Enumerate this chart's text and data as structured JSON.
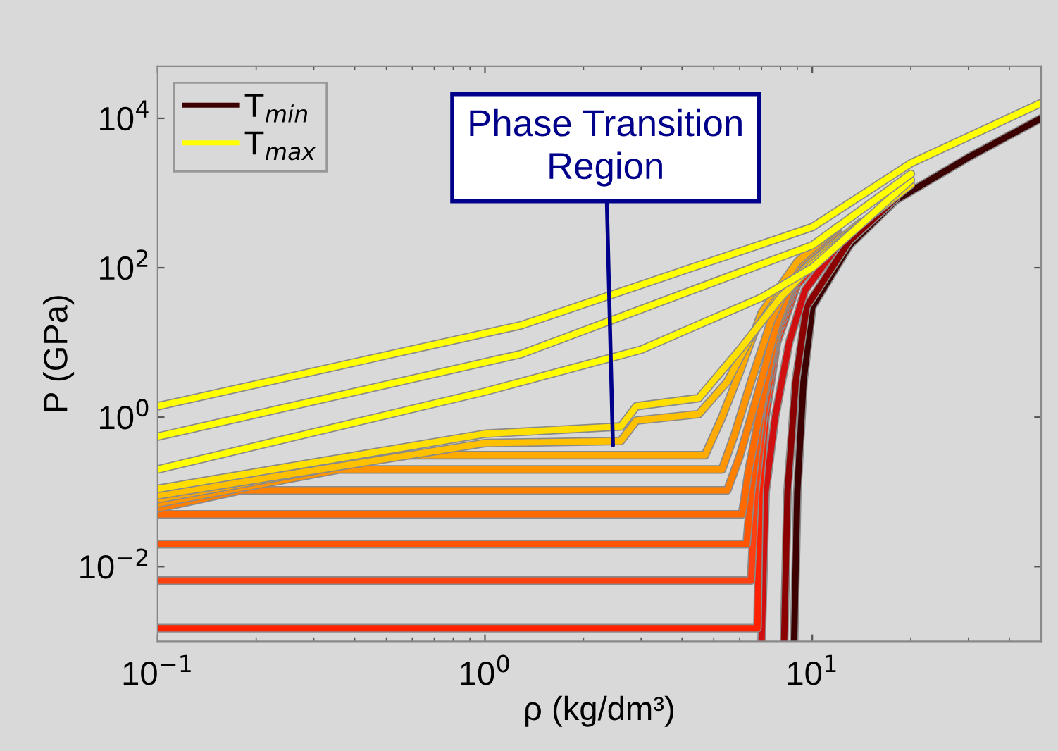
{
  "chart_data": {
    "type": "line",
    "xlabel": "ρ (kg/dm³)",
    "ylabel": "P (GPa)",
    "log": "xy",
    "legend": "top left",
    "grid": false,
    "line_style": "solid",
    "marker": "none",
    "xlim": [
      0.1,
      50
    ],
    "ylim": [
      0.001,
      50000
    ],
    "xticks": [
      {
        "value": 0.1,
        "label": "10$^{−1}$"
      },
      {
        "value": 1,
        "label": "10$^{0}$"
      },
      {
        "value": 10,
        "label": "10$^{1}$"
      }
    ],
    "yticks": [
      {
        "value": 0.01,
        "label": "10$^{−2}$"
      },
      {
        "value": 1,
        "label": "10$^{0}$"
      },
      {
        "value": 100,
        "label": "10$^{2}$"
      },
      {
        "value": 10000,
        "label": "10$^{4}$"
      }
    ],
    "annotations": [
      {
        "text": "Phase Transition\nRegion",
        "x": 2.46,
        "y": 0.42
      }
    ],
    "series": [
      {
        "name": "T$_{min}$",
        "color": "#3c0000",
        "x": [
          8.8,
          9.0,
          9.4,
          10,
          13,
          18,
          30,
          50
        ],
        "values": [
          0.001,
          0.1,
          3,
          30,
          200,
          800,
          3000,
          10000
        ]
      },
      {
        "color": "#8b0000",
        "x": [
          8.2,
          8.4,
          8.9,
          9.6,
          13,
          18
        ],
        "values": [
          0.001,
          0.1,
          3,
          30,
          230,
          850
        ]
      },
      {
        "color": "#d01010",
        "x": [
          7.0,
          7.2,
          7.7,
          8.5,
          9.5,
          12
        ],
        "values": [
          0.001,
          0.1,
          1,
          10,
          50,
          200
        ]
      },
      {
        "color": "#ff2000",
        "x": [
          0.1,
          6.8,
          6.9,
          7.2,
          7.8,
          9,
          12
        ],
        "values": [
          0.0015,
          0.0015,
          0.1,
          1,
          10,
          60,
          250
        ]
      },
      {
        "color": "#ff4010",
        "x": [
          0.1,
          6.5,
          6.7,
          7.1,
          7.8,
          9,
          12
        ],
        "values": [
          0.0065,
          0.0065,
          0.1,
          1,
          12,
          70,
          270
        ]
      },
      {
        "color": "#ff5500",
        "x": [
          0.1,
          6.3,
          6.5,
          7,
          7.8,
          9,
          12
        ],
        "values": [
          0.02,
          0.02,
          0.1,
          1.2,
          14,
          80,
          290
        ]
      },
      {
        "color": "#ff6a00",
        "x": [
          0.1,
          6.1,
          6.4,
          7,
          7.8,
          9,
          12
        ],
        "values": [
          0.05,
          0.05,
          0.2,
          1.5,
          16,
          90,
          300
        ]
      },
      {
        "color": "#ff8000",
        "x": [
          0.1,
          0.18,
          5.5,
          6,
          6.8,
          7.8,
          9,
          12
        ],
        "values": [
          0.06,
          0.105,
          0.105,
          0.3,
          2,
          18,
          100,
          320
        ]
      },
      {
        "color": "#ff9500",
        "x": [
          0.1,
          0.36,
          5.3,
          5.8,
          6.5,
          7.5,
          9,
          12
        ],
        "values": [
          0.07,
          0.2,
          0.2,
          0.6,
          3,
          20,
          110,
          340
        ]
      },
      {
        "color": "#ffaa00",
        "x": [
          0.1,
          0.55,
          4.7,
          5.3,
          6,
          7,
          9,
          12
        ],
        "values": [
          0.08,
          0.31,
          0.31,
          1,
          4,
          25,
          120,
          360
        ]
      },
      {
        "color": "#ffc000",
        "x": [
          0.1,
          1.0,
          2.6,
          2.9,
          4.5,
          5.5,
          6.5,
          8,
          10,
          14
        ],
        "values": [
          0.09,
          0.45,
          0.48,
          0.9,
          1.1,
          3,
          12,
          45,
          120,
          400
        ]
      },
      {
        "color": "#ffe000",
        "x": [
          0.1,
          1.0,
          2.6,
          2.9,
          4.5,
          6,
          8,
          10,
          14,
          20
        ],
        "values": [
          0.11,
          0.6,
          0.75,
          1.4,
          1.8,
          8,
          40,
          110,
          380,
          1300
        ]
      },
      {
        "color": "#ffff00",
        "x": [
          0.1,
          1,
          3,
          7,
          10,
          20
        ],
        "values": [
          0.2,
          2.2,
          8,
          40,
          100,
          1500
        ]
      },
      {
        "color": "#ffff00",
        "x": [
          0.1,
          1.29,
          10,
          20
        ],
        "values": [
          0.55,
          7,
          200,
          1800
        ]
      },
      {
        "name": "T$_{max}$",
        "color": "#ffff00",
        "x": [
          0.1,
          1.29,
          10,
          20,
          50
        ],
        "values": [
          1.4,
          17,
          350,
          2500,
          16000
        ]
      }
    ]
  }
}
